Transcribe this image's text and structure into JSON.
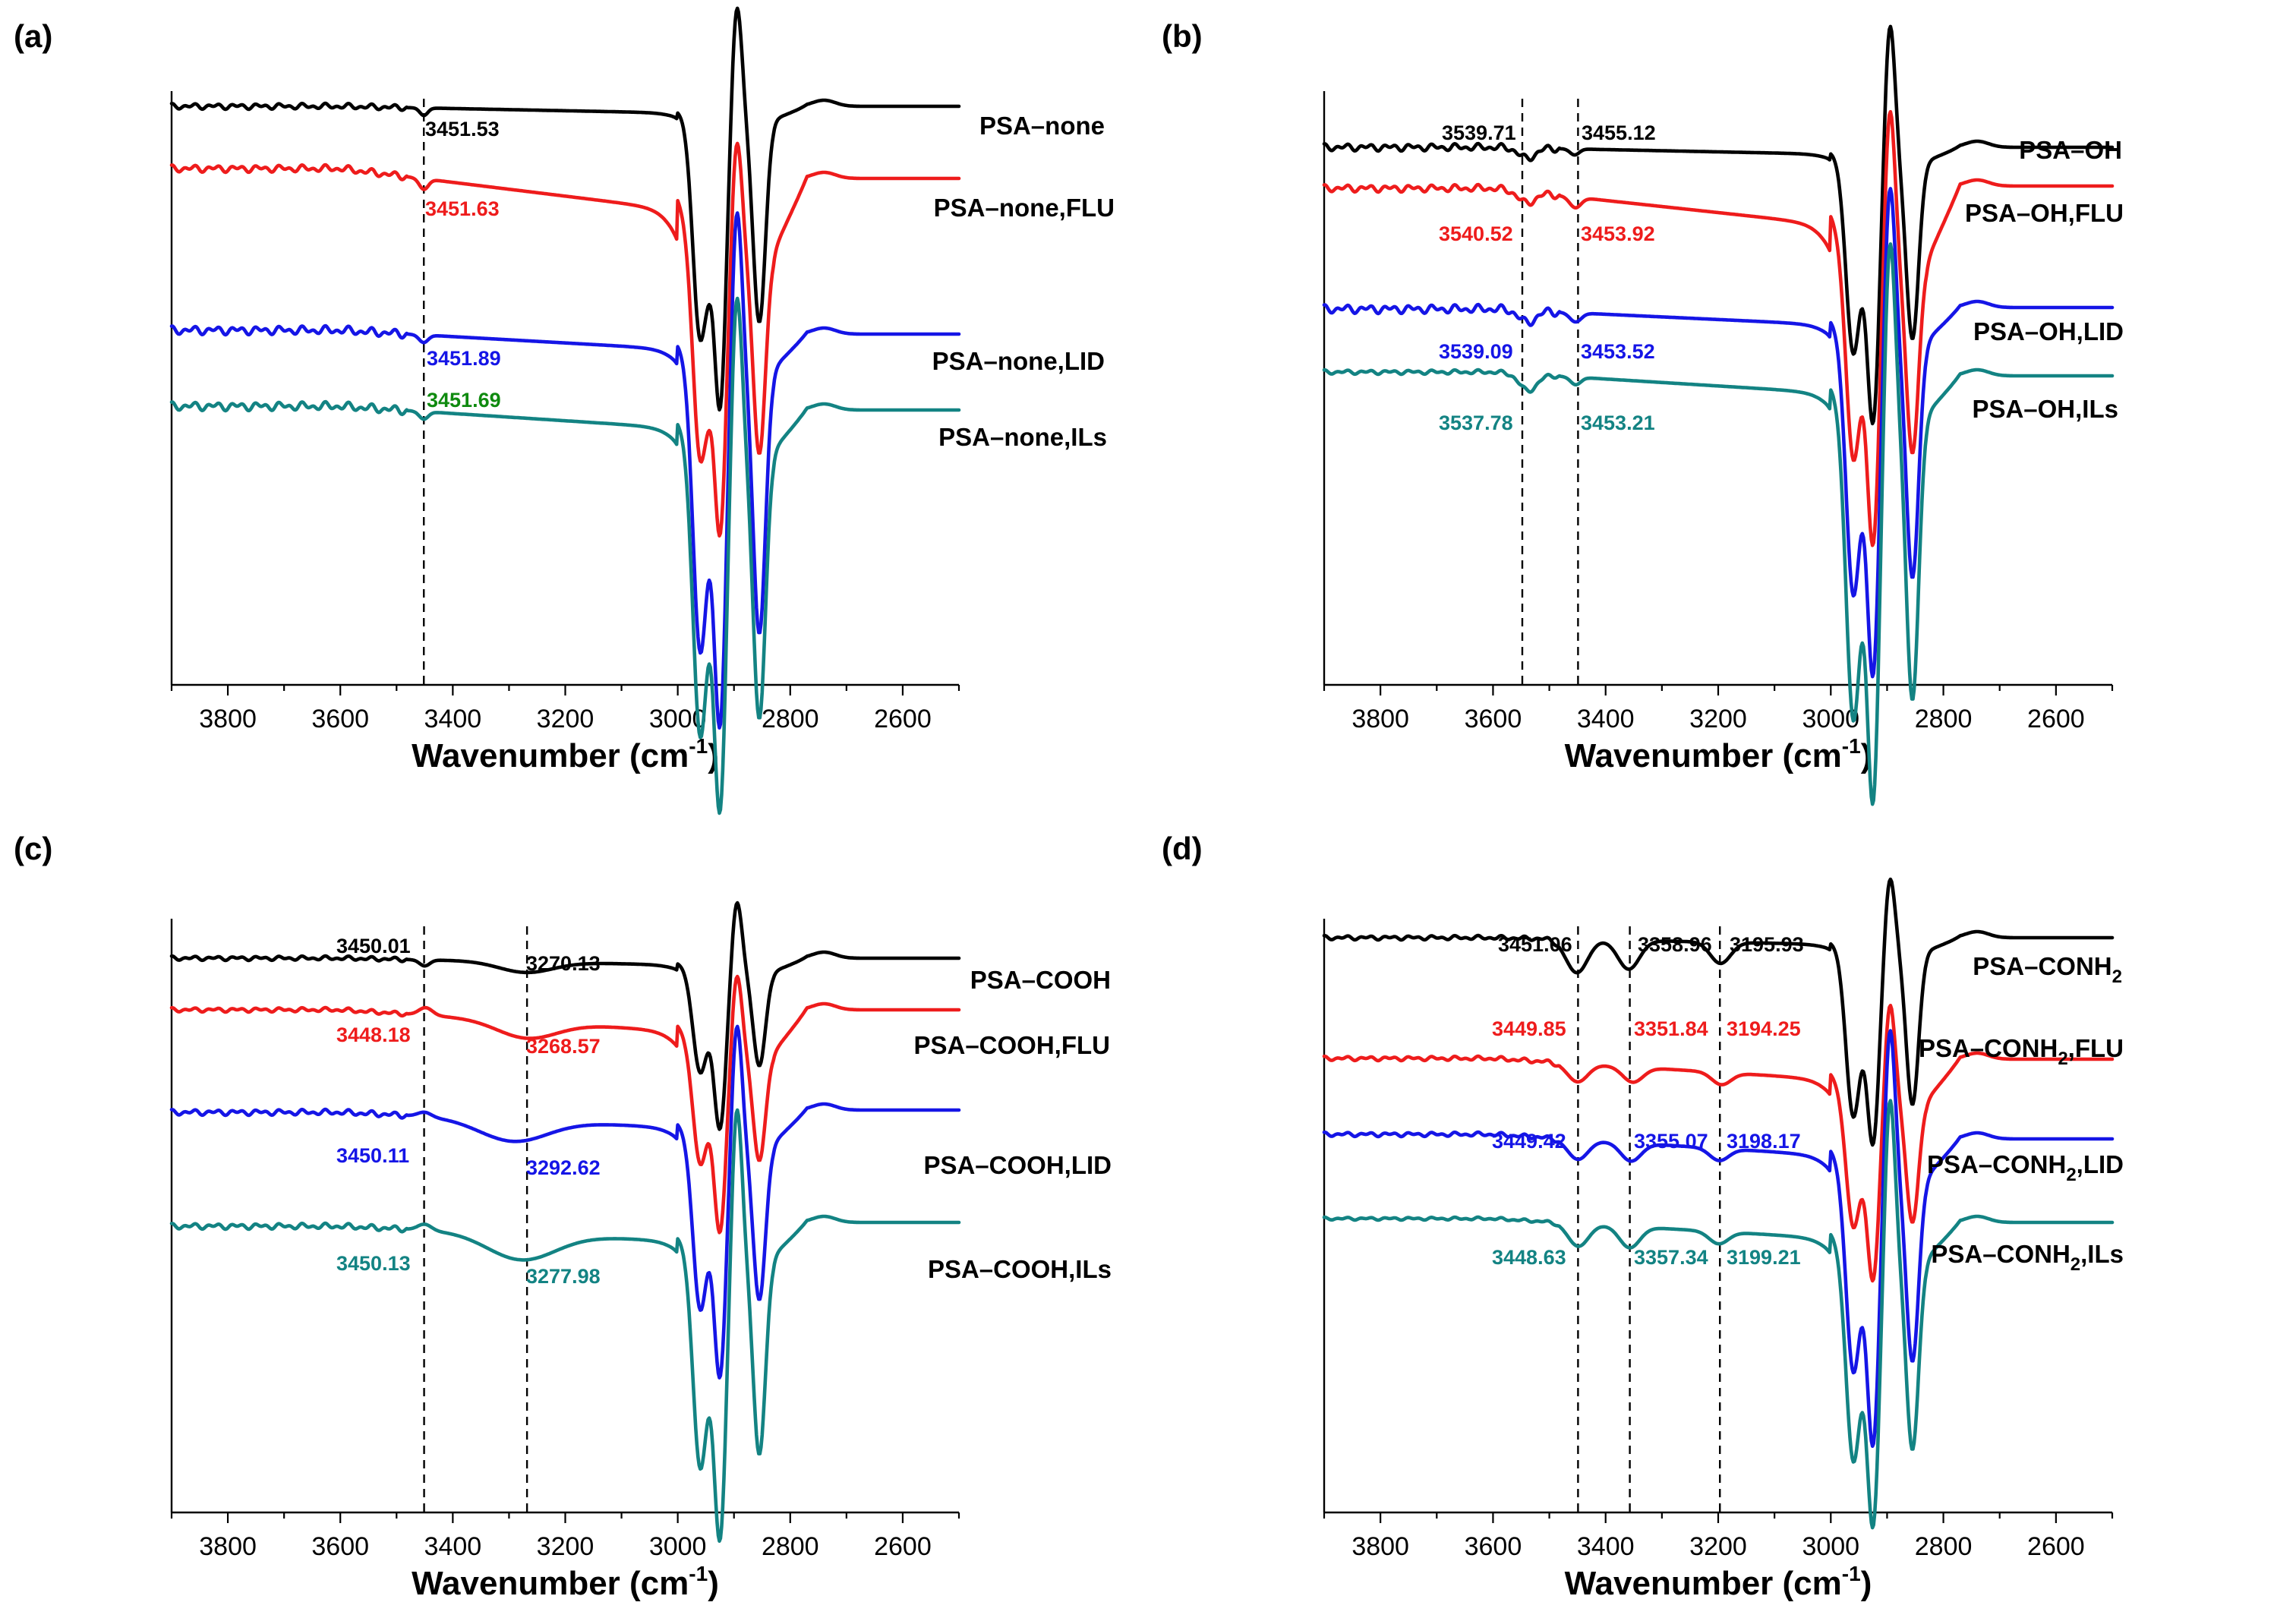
{
  "colors": {
    "black": "#000000",
    "red": "#ee1c1c",
    "blue": "#1515e6",
    "teal": "#138383",
    "green": "#0f8a0f"
  },
  "chart_data": [
    {
      "type": "line",
      "panel_label": "(a)",
      "xlabel_main": "Wavenumber (cm",
      "xlabel_sup": "-1",
      "xlabel_close": ")",
      "xlim": [
        3900,
        2500
      ],
      "xticks": [
        3800,
        3600,
        3400,
        3200,
        3000,
        2800,
        2600
      ],
      "grid": false,
      "reference_lines_cm1": [
        3451.5
      ],
      "series": [
        {
          "name": "PSA–none",
          "name_parts": [
            "PSA–none"
          ],
          "color": "black",
          "peak_labels": [
            "3451.53"
          ],
          "peaks_cm1": [
            3451.53
          ]
        },
        {
          "name": "PSA–none,FLU",
          "name_parts": [
            "PSA–none,FLU"
          ],
          "color": "red",
          "peak_labels": [
            "3451.63"
          ],
          "peaks_cm1": [
            3451.63
          ]
        },
        {
          "name": "PSA–none,LID",
          "name_parts": [
            "PSA–none,LID"
          ],
          "color": "blue",
          "peak_labels": [
            "3451.89"
          ],
          "peaks_cm1": [
            3451.89
          ]
        },
        {
          "name": "PSA–none,ILs",
          "name_parts": [
            "PSA–none,ILs"
          ],
          "color": "teal",
          "peak_label_color": "green",
          "peak_labels": [
            "3451.69"
          ],
          "peaks_cm1": [
            3451.69
          ]
        }
      ]
    },
    {
      "type": "line",
      "panel_label": "(b)",
      "xlabel_main": "Wavenumber (cm",
      "xlabel_sup": "-1",
      "xlabel_close": ")",
      "xlim": [
        3900,
        2500
      ],
      "xticks": [
        3800,
        3600,
        3400,
        3200,
        3000,
        2800,
        2600
      ],
      "grid": false,
      "reference_lines_cm1": [
        3548,
        3449
      ],
      "series": [
        {
          "name": "PSA–OH",
          "name_parts": [
            "PSA–OH"
          ],
          "color": "black",
          "peak_labels": [
            "3539.71",
            "3455.12"
          ],
          "peaks_cm1": [
            3539.71,
            3455.12
          ]
        },
        {
          "name": "PSA–OH,FLU",
          "name_parts": [
            "PSA–OH,FLU"
          ],
          "color": "red",
          "peak_labels": [
            "3540.52",
            "3453.92"
          ],
          "peaks_cm1": [
            3540.52,
            3453.92
          ]
        },
        {
          "name": "PSA–OH,LID",
          "name_parts": [
            "PSA–OH,LID"
          ],
          "color": "blue",
          "peak_labels": [
            "3539.09",
            "3453.52"
          ],
          "peaks_cm1": [
            3539.09,
            3453.52
          ]
        },
        {
          "name": "PSA–OH,ILs",
          "name_parts": [
            "PSA–OH,ILs"
          ],
          "color": "teal",
          "peak_labels": [
            "3537.78",
            "3453.21"
          ],
          "peaks_cm1": [
            3537.78,
            3453.21
          ]
        }
      ]
    },
    {
      "type": "line",
      "panel_label": "(c)",
      "xlabel_main": "Wavenumber (cm",
      "xlabel_sup": "-1",
      "xlabel_close": ")",
      "xlim": [
        3900,
        2500
      ],
      "xticks": [
        3800,
        3600,
        3400,
        3200,
        3000,
        2800,
        2600
      ],
      "grid": false,
      "reference_lines_cm1": [
        3451,
        3268
      ],
      "series": [
        {
          "name": "PSA–COOH",
          "name_parts": [
            "PSA–COOH"
          ],
          "color": "black",
          "peak_labels": [
            "3450.01",
            "3270.13"
          ],
          "peaks_cm1": [
            3450.01,
            3270.13
          ]
        },
        {
          "name": "PSA–COOH,FLU",
          "name_parts": [
            "PSA–COOH,FLU"
          ],
          "color": "red",
          "peak_labels": [
            "3448.18",
            "3268.57"
          ],
          "peaks_cm1": [
            3448.18,
            3268.57
          ]
        },
        {
          "name": "PSA–COOH,LID",
          "name_parts": [
            "PSA–COOH,LID"
          ],
          "color": "blue",
          "peak_labels": [
            "3450.11",
            "3292.62"
          ],
          "peaks_cm1": [
            3450.11,
            3292.62
          ]
        },
        {
          "name": "PSA–COOH,ILs",
          "name_parts": [
            "PSA–COOH,ILs"
          ],
          "color": "teal",
          "peak_labels": [
            "3450.13",
            "3277.98"
          ],
          "peaks_cm1": [
            3450.13,
            3277.98
          ]
        }
      ]
    },
    {
      "type": "line",
      "panel_label": "(d)",
      "xlabel_main": "Wavenumber (cm",
      "xlabel_sup": "-1",
      "xlabel_close": ")",
      "xlim": [
        3900,
        2500
      ],
      "xticks": [
        3800,
        3600,
        3400,
        3200,
        3000,
        2800,
        2600
      ],
      "grid": false,
      "reference_lines_cm1": [
        3449,
        3357,
        3197
      ],
      "series": [
        {
          "name": "PSA–CONH2",
          "name_parts": [
            "PSA–CONH",
            "2",
            ""
          ],
          "color": "black",
          "peak_labels": [
            "3451.06",
            "3358.96",
            "3195.93"
          ],
          "peaks_cm1": [
            3451.06,
            3358.96,
            3195.93
          ]
        },
        {
          "name": "PSA–CONH2,FLU",
          "name_parts": [
            "PSA–CONH",
            "2",
            ",FLU"
          ],
          "color": "red",
          "peak_labels": [
            "3449.85",
            "3351.84",
            "3194.25"
          ],
          "peaks_cm1": [
            3449.85,
            3351.84,
            3194.25
          ]
        },
        {
          "name": "PSA–CONH2,LID",
          "name_parts": [
            "PSA–CONH",
            "2",
            ",LID"
          ],
          "color": "blue",
          "peak_labels": [
            "3449.42",
            "3355.07",
            "3198.17"
          ],
          "peaks_cm1": [
            3449.42,
            3355.07,
            3198.17
          ]
        },
        {
          "name": "PSA–CONH2,ILs",
          "name_parts": [
            "PSA–CONH",
            "2",
            ",ILs"
          ],
          "color": "teal",
          "peak_labels": [
            "3448.63",
            "3357.34",
            "3199.21"
          ],
          "peaks_cm1": [
            3448.63,
            3357.34,
            3199.21
          ]
        }
      ]
    }
  ]
}
